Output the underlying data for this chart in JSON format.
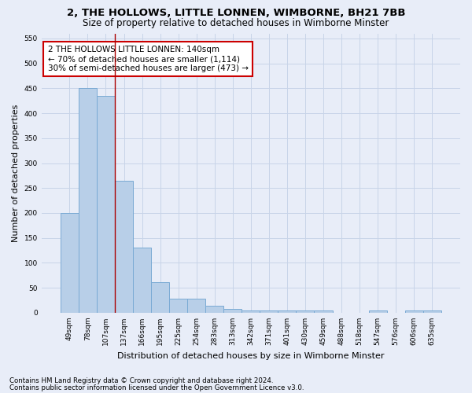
{
  "title": "2, THE HOLLOWS, LITTLE LONNEN, WIMBORNE, BH21 7BB",
  "subtitle": "Size of property relative to detached houses in Wimborne Minster",
  "xlabel": "Distribution of detached houses by size in Wimborne Minster",
  "ylabel": "Number of detached properties",
  "bar_labels": [
    "49sqm",
    "78sqm",
    "107sqm",
    "137sqm",
    "166sqm",
    "195sqm",
    "225sqm",
    "254sqm",
    "283sqm",
    "313sqm",
    "342sqm",
    "371sqm",
    "401sqm",
    "430sqm",
    "459sqm",
    "488sqm",
    "518sqm",
    "547sqm",
    "576sqm",
    "606sqm",
    "635sqm"
  ],
  "bar_values": [
    200,
    450,
    435,
    265,
    130,
    62,
    29,
    29,
    14,
    7,
    5,
    5,
    5,
    5,
    5,
    0,
    0,
    5,
    0,
    5,
    5
  ],
  "bar_color": "#b8cfe8",
  "bar_edge_color": "#7aaad4",
  "grid_color": "#c8d4e8",
  "bg_color": "#e8edf8",
  "annotation_text": "2 THE HOLLOWS LITTLE LONNEN: 140sqm\n← 70% of detached houses are smaller (1,114)\n30% of semi-detached houses are larger (473) →",
  "annotation_box_color": "#ffffff",
  "annotation_border_color": "#cc0000",
  "vline_x": 2.5,
  "vline_color": "#aa0000",
  "ylim": [
    0,
    560
  ],
  "yticks": [
    0,
    50,
    100,
    150,
    200,
    250,
    300,
    350,
    400,
    450,
    500,
    550
  ],
  "footer1": "Contains HM Land Registry data © Crown copyright and database right 2024.",
  "footer2": "Contains public sector information licensed under the Open Government Licence v3.0.",
  "title_fontsize": 9.5,
  "subtitle_fontsize": 8.5,
  "xlabel_fontsize": 8,
  "ylabel_fontsize": 8,
  "tick_fontsize": 6.5,
  "annotation_fontsize": 7.5,
  "footer_fontsize": 6.2
}
